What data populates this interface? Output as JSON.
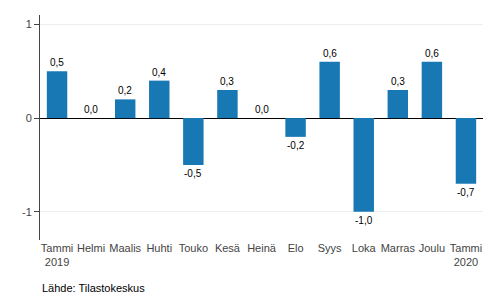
{
  "chart_data": {
    "type": "bar",
    "categories": [
      "Tammi\n2019",
      "Helmi",
      "Maalis",
      "Huhti",
      "Touko",
      "Kesä",
      "Heinä",
      "Elo",
      "Syys",
      "Loka",
      "Marras",
      "Joulu",
      "Tammi\n2020"
    ],
    "values": [
      0.5,
      0.0,
      0.2,
      0.4,
      -0.5,
      0.3,
      0.0,
      -0.2,
      0.6,
      -1.0,
      0.3,
      0.6,
      -0.7
    ],
    "value_labels": [
      "0,5",
      "0,0",
      "0,2",
      "0,4",
      "-0,5",
      "0,3",
      "0,0",
      "-0,2",
      "0,6",
      "-1,0",
      "0,3",
      "0,6",
      "-0,7"
    ],
    "data_labels": true,
    "color": "#1878b4",
    "ylim": [
      -1.3,
      1.1
    ],
    "yticks": [
      -1,
      0,
      1
    ],
    "grid": true,
    "annotations": [
      "Lähde: Tilastokeskus"
    ]
  }
}
